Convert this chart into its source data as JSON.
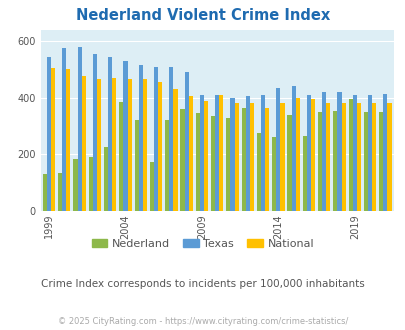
{
  "title": "Nederland Violent Crime Index",
  "subtitle": "Crime Index corresponds to incidents per 100,000 inhabitants",
  "footer": "© 2025 CityRating.com - https://www.cityrating.com/crime-statistics/",
  "years": [
    1999,
    2000,
    2001,
    2002,
    2003,
    2004,
    2005,
    2006,
    2007,
    2008,
    2009,
    2010,
    2011,
    2012,
    2013,
    2014,
    2015,
    2016,
    2017,
    2018,
    2019,
    2020,
    2021
  ],
  "nederland": [
    130,
    135,
    185,
    190,
    225,
    385,
    320,
    175,
    320,
    360,
    345,
    335,
    330,
    365,
    275,
    260,
    340,
    265,
    350,
    355,
    395,
    350,
    350
  ],
  "texas": [
    545,
    575,
    580,
    555,
    545,
    530,
    515,
    510,
    510,
    490,
    410,
    410,
    400,
    405,
    410,
    435,
    440,
    410,
    420,
    420,
    410,
    410,
    415
  ],
  "national": [
    505,
    500,
    475,
    465,
    470,
    465,
    465,
    455,
    430,
    405,
    390,
    410,
    380,
    380,
    365,
    380,
    400,
    395,
    380,
    380,
    380,
    380,
    380
  ],
  "nederland_color": "#8db84a",
  "texas_color": "#5b9bd5",
  "national_color": "#ffc000",
  "bg_color": "#ddeef5",
  "title_color": "#1f6bb0",
  "text_color": "#555555",
  "footer_color": "#aaaaaa",
  "ylabel_ticks": [
    0,
    200,
    400,
    600
  ],
  "ylim": [
    0,
    640
  ],
  "xtick_years": [
    1999,
    2004,
    2009,
    2014,
    2019
  ]
}
